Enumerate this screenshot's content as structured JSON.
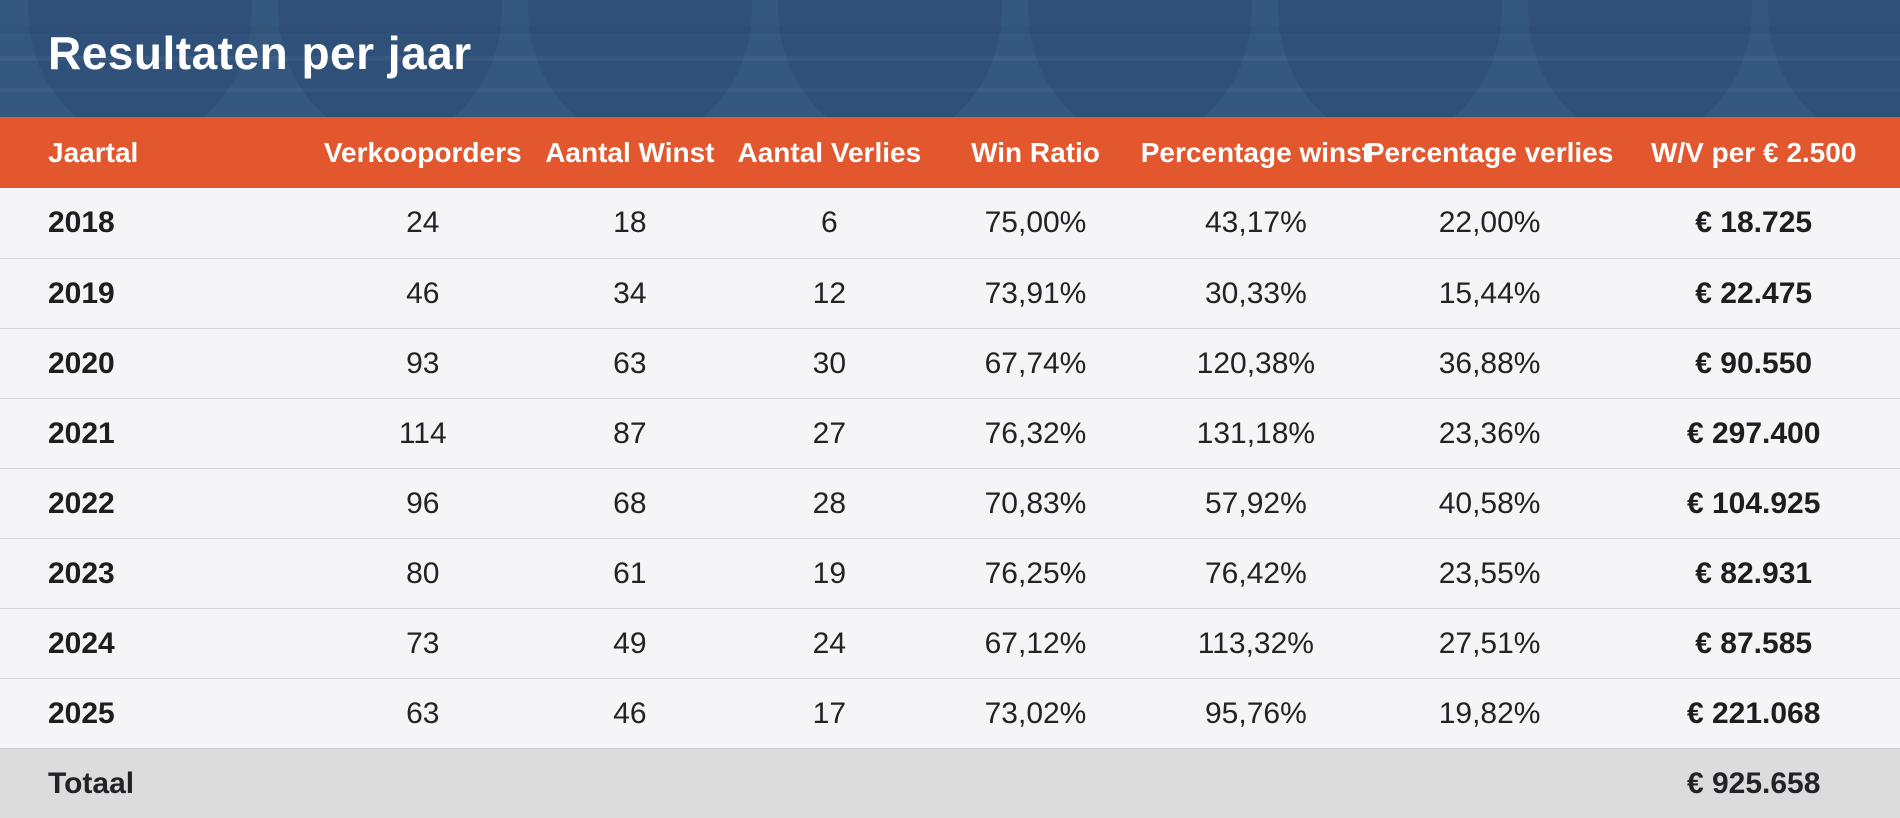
{
  "header": {
    "title": "Resultaten per jaar"
  },
  "colors": {
    "hero_bg": "#35587f",
    "hero_watermark": "#294b75",
    "accent_orange": "#e2572e",
    "row_bg": "#f5f5f7",
    "total_row_bg": "#dcdcdc",
    "divider": "#d7d7da",
    "header_text": "#ffffff",
    "cell_text": "#222327"
  },
  "chart_data": {
    "type": "table",
    "title": "Resultaten per jaar",
    "columns": [
      {
        "key": "jaartal",
        "label": "Jaartal",
        "align": "left",
        "bold": true
      },
      {
        "key": "verkooporders",
        "label": "Verkooporders",
        "align": "center",
        "bold": false
      },
      {
        "key": "aantal_winst",
        "label": "Aantal Winst",
        "align": "center",
        "bold": false
      },
      {
        "key": "aantal_verlies",
        "label": "Aantal Verlies",
        "align": "center",
        "bold": false
      },
      {
        "key": "win_ratio",
        "label": "Win Ratio",
        "align": "center",
        "bold": false
      },
      {
        "key": "percentage_winst",
        "label": "Percentage winst",
        "align": "center",
        "bold": false
      },
      {
        "key": "percentage_verlies",
        "label": "Percentage verlies",
        "align": "center",
        "bold": false
      },
      {
        "key": "wv_per_2500",
        "label": "W/V per € 2.500",
        "align": "center",
        "bold": true
      }
    ],
    "rows": [
      {
        "jaartal": "2018",
        "verkooporders": "24",
        "aantal_winst": "18",
        "aantal_verlies": "6",
        "win_ratio": "75,00%",
        "percentage_winst": "43,17%",
        "percentage_verlies": "22,00%",
        "wv_per_2500": "€ 18.725"
      },
      {
        "jaartal": "2019",
        "verkooporders": "46",
        "aantal_winst": "34",
        "aantal_verlies": "12",
        "win_ratio": "73,91%",
        "percentage_winst": "30,33%",
        "percentage_verlies": "15,44%",
        "wv_per_2500": "€ 22.475"
      },
      {
        "jaartal": "2020",
        "verkooporders": "93",
        "aantal_winst": "63",
        "aantal_verlies": "30",
        "win_ratio": "67,74%",
        "percentage_winst": "120,38%",
        "percentage_verlies": "36,88%",
        "wv_per_2500": "€ 90.550"
      },
      {
        "jaartal": "2021",
        "verkooporders": "114",
        "aantal_winst": "87",
        "aantal_verlies": "27",
        "win_ratio": "76,32%",
        "percentage_winst": "131,18%",
        "percentage_verlies": "23,36%",
        "wv_per_2500": "€ 297.400"
      },
      {
        "jaartal": "2022",
        "verkooporders": "96",
        "aantal_winst": "68",
        "aantal_verlies": "28",
        "win_ratio": "70,83%",
        "percentage_winst": "57,92%",
        "percentage_verlies": "40,58%",
        "wv_per_2500": "€ 104.925"
      },
      {
        "jaartal": "2023",
        "verkooporders": "80",
        "aantal_winst": "61",
        "aantal_verlies": "19",
        "win_ratio": "76,25%",
        "percentage_winst": "76,42%",
        "percentage_verlies": "23,55%",
        "wv_per_2500": "€ 82.931"
      },
      {
        "jaartal": "2024",
        "verkooporders": "73",
        "aantal_winst": "49",
        "aantal_verlies": "24",
        "win_ratio": "67,12%",
        "percentage_winst": "113,32%",
        "percentage_verlies": "27,51%",
        "wv_per_2500": "€ 87.585"
      },
      {
        "jaartal": "2025",
        "verkooporders": "63",
        "aantal_winst": "46",
        "aantal_verlies": "17",
        "win_ratio": "73,02%",
        "percentage_winst": "95,76%",
        "percentage_verlies": "19,82%",
        "wv_per_2500": "€ 221.068"
      }
    ],
    "total": {
      "label": "Totaal",
      "value": "€ 925.658"
    }
  }
}
